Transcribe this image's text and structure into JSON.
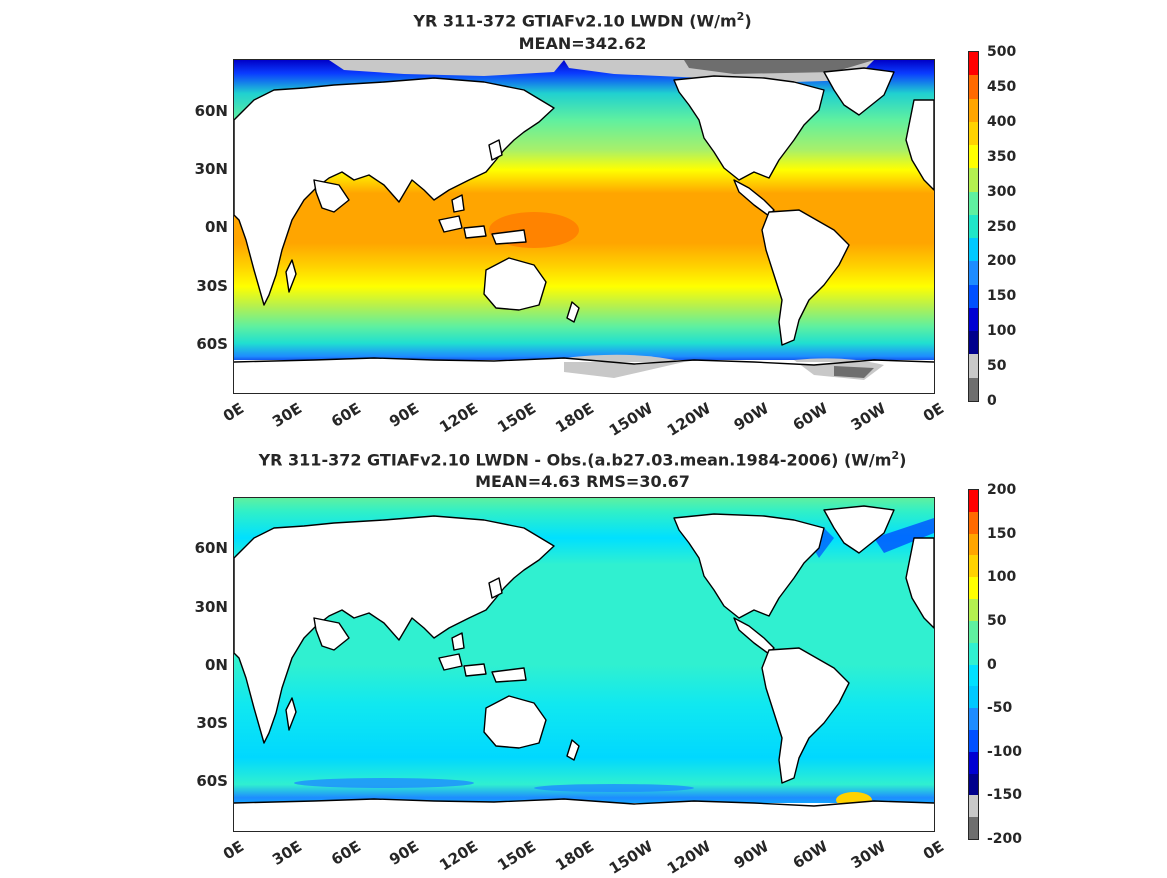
{
  "top": {
    "title_main": "YR 311-372 GTIAFv2.10 LWDN (W/m",
    "title_sup": "2",
    "title_end": ")",
    "subtitle": "MEAN=342.62",
    "colorbar_labels": [
      "500",
      "450",
      "400",
      "350",
      "300",
      "250",
      "200",
      "150",
      "100",
      "50",
      "0"
    ],
    "colorbar_colors": [
      "#ff0000",
      "#ff6a00",
      "#ffa500",
      "#ffd200",
      "#ffff00",
      "#b4f050",
      "#5ff0a0",
      "#20e6c8",
      "#00c8ff",
      "#1e8cff",
      "#0050ff",
      "#0000d2",
      "#00008c",
      "#c8c8c8",
      "#6e6e6e"
    ]
  },
  "bottom": {
    "title_main": "YR 311-372 GTIAFv2.10 LWDN - Obs.(a.b27.03.mean.1984-2006) (W/m",
    "title_sup": "2",
    "title_end": ")",
    "subtitle": "MEAN=4.63 RMS=30.67",
    "colorbar_labels": [
      "200",
      "150",
      "100",
      "50",
      "0",
      "-50",
      "-100",
      "-150",
      "-200"
    ],
    "colorbar_colors": [
      "#ff0000",
      "#ff6a00",
      "#ffa500",
      "#ffd200",
      "#ffff00",
      "#b4f050",
      "#5ff0a0",
      "#30f0d0",
      "#00e0ff",
      "#00c8ff",
      "#1e8cff",
      "#0050ff",
      "#0000d2",
      "#00008c",
      "#c8c8c8",
      "#6e6e6e"
    ]
  },
  "axes": {
    "y_ticks": [
      "60N",
      "30N",
      "0N",
      "30S",
      "60S"
    ],
    "x_ticks": [
      "0E",
      "30E",
      "60E",
      "90E",
      "120E",
      "150E",
      "180E",
      "150W",
      "120W",
      "90W",
      "60W",
      "30W",
      "0E"
    ]
  }
}
